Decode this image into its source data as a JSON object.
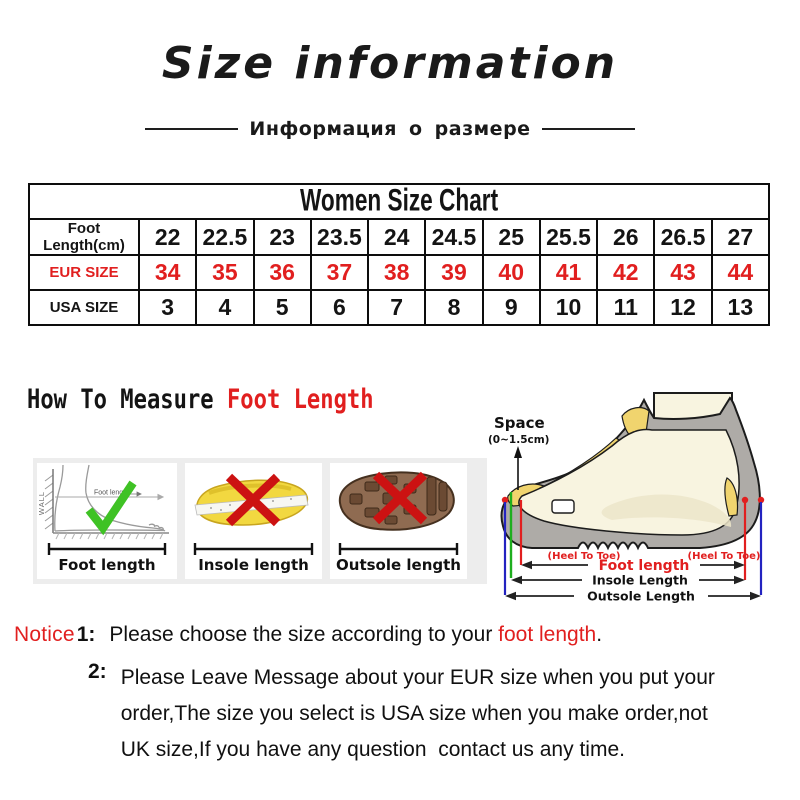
{
  "header": {
    "title": "Size information",
    "subtitle": "Информация о размере"
  },
  "size_table": {
    "title": "Women Size Chart",
    "rows": [
      {
        "label": "Foot Length(cm)",
        "color": "#141414",
        "values": [
          "22",
          "22.5",
          "23",
          "23.5",
          "24",
          "24.5",
          "25",
          "25.5",
          "26",
          "26.5",
          "27"
        ]
      },
      {
        "label": "EUR SIZE",
        "color": "#e11f1f",
        "values": [
          "34",
          "35",
          "36",
          "37",
          "38",
          "39",
          "40",
          "41",
          "42",
          "43",
          "44"
        ]
      },
      {
        "label": "USA SIZE",
        "color": "#141414",
        "values": [
          "3",
          "4",
          "5",
          "6",
          "7",
          "8",
          "9",
          "10",
          "11",
          "12",
          "13"
        ]
      }
    ]
  },
  "measure": {
    "heading_black": "How To Measure ",
    "heading_red": "Foot Length",
    "box1": {
      "label": "Foot length",
      "wall": "WALL",
      "arrow_label": "Foot length"
    },
    "box2": {
      "label": "Insole length"
    },
    "box3": {
      "label": "Outsole length"
    }
  },
  "diagram": {
    "space": "Space",
    "space_range": "(0~1.5cm)",
    "heel_to_toe_left": "(Heel To Toe)",
    "heel_to_toe_right": "(Heel To Toe)",
    "foot_length": "Foot length",
    "insole_length": "Insole Length",
    "outsole_length": "Outsole Length"
  },
  "notice": {
    "label": "Notice",
    "item1": {
      "num": "1:",
      "pre": "Please choose the size according to your ",
      "highlight": "foot length",
      "post": "."
    },
    "item2": {
      "num": "2:",
      "lines": [
        "Please Leave Message about your EUR size when you put your",
        "order,The size you select is USA size when you make order,not",
        "UK size,If you have any question  contact us any time."
      ]
    }
  },
  "colors": {
    "accent_red": "#e11f1f",
    "check_green": "#3fc225",
    "line_green": "#1fae1f",
    "line_blue": "#2323c0",
    "boot_gray": "#aeaba7",
    "foot_cream": "#f8f4e0",
    "patch_yellow": "#f0d46e",
    "insole_yellow": "#f2d840",
    "outsole_brown": "#8f6b51",
    "panel_gray": "#ededed"
  }
}
